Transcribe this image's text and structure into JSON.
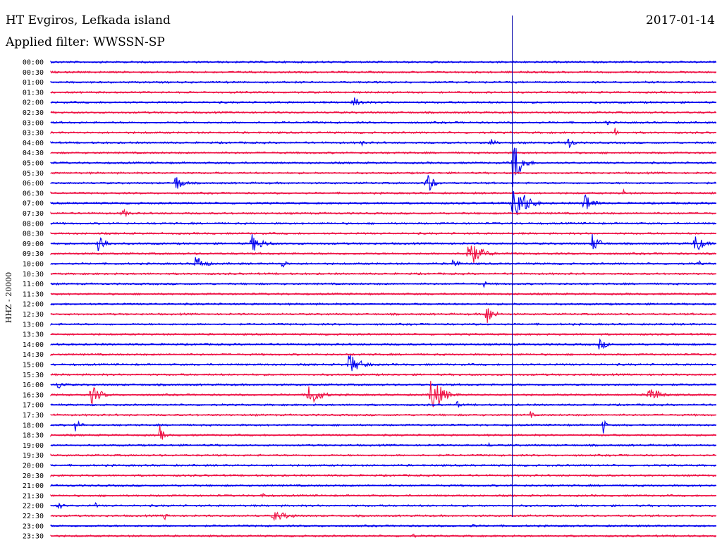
{
  "header": {
    "station": "HT Evgiros, Lefkada island",
    "filter": "Applied filter: WWSSN-SP",
    "date": "2017-01-14"
  },
  "colors": {
    "even": "#0000ee",
    "odd": "#ee1144",
    "marker": "#0000aa"
  },
  "chart_data": {
    "type": "line",
    "title": "HT Evgiros, Lefkada island",
    "subtitle": "Applied filter: WWSSN-SP",
    "date": "2017-01-14",
    "ylabel": "HHZ - 20000",
    "row_labels": [
      "00:00",
      "00:30",
      "01:00",
      "01:30",
      "02:00",
      "02:30",
      "03:00",
      "03:30",
      "04:00",
      "04:30",
      "05:00",
      "05:30",
      "06:00",
      "06:30",
      "07:00",
      "07:30",
      "08:00",
      "08:30",
      "09:00",
      "09:30",
      "10:00",
      "10:30",
      "11:00",
      "11:30",
      "12:00",
      "12:30",
      "13:00",
      "13:30",
      "14:00",
      "14:30",
      "15:00",
      "15:30",
      "16:00",
      "16:30",
      "17:00",
      "17:30",
      "18:00",
      "18:30",
      "19:00",
      "19:30",
      "20:00",
      "20:30",
      "21:00",
      "21:30",
      "22:00",
      "22:30",
      "23:00",
      "23:30"
    ],
    "minutes_per_row": 30,
    "marker_minute": 20.8,
    "events": [
      {
        "row": 4,
        "minute": 13.6,
        "amp": 9,
        "dur": 1.2
      },
      {
        "row": 6,
        "minute": 25.0,
        "amp": 4,
        "dur": 1.0
      },
      {
        "row": 7,
        "minute": 25.4,
        "amp": 12,
        "dur": 0.3
      },
      {
        "row": 8,
        "minute": 14.0,
        "amp": 8,
        "dur": 0.3
      },
      {
        "row": 8,
        "minute": 19.8,
        "amp": 10,
        "dur": 0.6
      },
      {
        "row": 8,
        "minute": 23.2,
        "amp": 14,
        "dur": 0.8
      },
      {
        "row": 10,
        "minute": 20.8,
        "amp": 40,
        "dur": 1.0
      },
      {
        "row": 12,
        "minute": 5.6,
        "amp": 14,
        "dur": 0.9
      },
      {
        "row": 12,
        "minute": 16.9,
        "amp": 22,
        "dur": 0.8
      },
      {
        "row": 13,
        "minute": 25.8,
        "amp": 6,
        "dur": 0.3
      },
      {
        "row": 14,
        "minute": 20.8,
        "amp": 45,
        "dur": 1.3
      },
      {
        "row": 14,
        "minute": 24.0,
        "amp": 22,
        "dur": 0.9
      },
      {
        "row": 15,
        "minute": 3.2,
        "amp": 7,
        "dur": 1.0
      },
      {
        "row": 18,
        "minute": 2.1,
        "amp": 22,
        "dur": 0.8
      },
      {
        "row": 18,
        "minute": 9.0,
        "amp": 16,
        "dur": 1.4
      },
      {
        "row": 18,
        "minute": 24.4,
        "amp": 14,
        "dur": 1.0
      },
      {
        "row": 18,
        "minute": 29.0,
        "amp": 18,
        "dur": 1.0
      },
      {
        "row": 19,
        "minute": 18.7,
        "amp": 28,
        "dur": 1.5
      },
      {
        "row": 20,
        "minute": 6.5,
        "amp": 14,
        "dur": 1.1
      },
      {
        "row": 20,
        "minute": 10.4,
        "amp": 9,
        "dur": 0.6
      },
      {
        "row": 20,
        "minute": 18.1,
        "amp": 9,
        "dur": 0.8
      },
      {
        "row": 20,
        "minute": 29.2,
        "amp": 7,
        "dur": 0.3
      },
      {
        "row": 22,
        "minute": 19.5,
        "amp": 6,
        "dur": 0.5
      },
      {
        "row": 25,
        "minute": 19.6,
        "amp": 20,
        "dur": 0.8
      },
      {
        "row": 28,
        "minute": 24.7,
        "amp": 8,
        "dur": 1.2
      },
      {
        "row": 30,
        "minute": 13.4,
        "amp": 18,
        "dur": 1.4
      },
      {
        "row": 32,
        "minute": 0.3,
        "amp": 8,
        "dur": 0.9
      },
      {
        "row": 33,
        "minute": 1.8,
        "amp": 16,
        "dur": 1.2
      },
      {
        "row": 33,
        "minute": 11.6,
        "amp": 22,
        "dur": 1.2
      },
      {
        "row": 33,
        "minute": 17.1,
        "amp": 34,
        "dur": 1.3
      },
      {
        "row": 33,
        "minute": 26.9,
        "amp": 18,
        "dur": 1.2
      },
      {
        "row": 34,
        "minute": 18.3,
        "amp": 6,
        "dur": 0.6
      },
      {
        "row": 35,
        "minute": 21.6,
        "amp": 6,
        "dur": 0.5
      },
      {
        "row": 36,
        "minute": 1.1,
        "amp": 9,
        "dur": 0.8
      },
      {
        "row": 36,
        "minute": 24.9,
        "amp": 14,
        "dur": 0.3
      },
      {
        "row": 37,
        "minute": 4.9,
        "amp": 16,
        "dur": 0.5
      },
      {
        "row": 38,
        "minute": 19.7,
        "amp": 6,
        "dur": 0.4
      },
      {
        "row": 43,
        "minute": 9.5,
        "amp": 5,
        "dur": 0.8
      },
      {
        "row": 44,
        "minute": 0.3,
        "amp": 7,
        "dur": 0.7
      },
      {
        "row": 44,
        "minute": 2.0,
        "amp": 5,
        "dur": 0.4
      },
      {
        "row": 45,
        "minute": 5.1,
        "amp": 8,
        "dur": 0.4
      },
      {
        "row": 45,
        "minute": 10.0,
        "amp": 8,
        "dur": 2.2
      },
      {
        "row": 46,
        "minute": 19.0,
        "amp": 4,
        "dur": 0.6
      },
      {
        "row": 47,
        "minute": 16.3,
        "amp": 7,
        "dur": 0.3
      }
    ]
  }
}
